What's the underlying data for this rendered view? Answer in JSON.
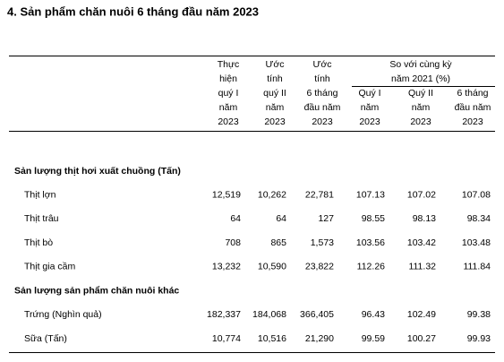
{
  "title": "4. Sản phẩm chăn nuôi 6 tháng đầu năm 2023",
  "header": {
    "columns": [
      {
        "lines": [
          "Thực",
          "hiện",
          "quý I",
          "năm",
          "2023"
        ]
      },
      {
        "lines": [
          "Ước",
          "tính",
          "quý II",
          "năm",
          "2023"
        ]
      },
      {
        "lines": [
          "Ước",
          "tính",
          "6 tháng",
          "đầu năm",
          "2023"
        ]
      },
      {
        "lines": [
          "Quý I",
          "năm",
          "2023"
        ]
      },
      {
        "lines": [
          "Quý II",
          "năm",
          "2023"
        ]
      },
      {
        "lines": [
          "6 tháng",
          "đầu năm",
          "2023"
        ]
      }
    ],
    "group": {
      "lines": [
        "So với cùng kỳ",
        "năm 2021 (%)"
      ]
    }
  },
  "sections": [
    {
      "title": "Sản lượng thịt hơi xuất chuồng (Tấn)",
      "rows": [
        {
          "label": "Thịt lợn",
          "cells": [
            "12,519",
            "10,262",
            "22,781",
            "107.13",
            "107.02",
            "107.08"
          ]
        },
        {
          "label": "Thịt trâu",
          "cells": [
            "64",
            "64",
            "127",
            "98.55",
            "98.13",
            "98.34"
          ]
        },
        {
          "label": "Thịt bò",
          "cells": [
            "708",
            "865",
            "1,573",
            "103.56",
            "103.42",
            "103.48"
          ]
        },
        {
          "label": "Thịt gia cầm",
          "cells": [
            "13,232",
            "10,590",
            "23,822",
            "112.26",
            "111.32",
            "111.84"
          ]
        }
      ]
    },
    {
      "title": "Sản lượng sản phẩm chăn nuôi khác",
      "rows": [
        {
          "label": "Trứng (Nghìn quả)",
          "cells": [
            "182,337",
            "184,068",
            "366,405",
            "96.43",
            "102.49",
            "99.38"
          ]
        },
        {
          "label": "Sữa (Tấn)",
          "cells": [
            "10,774",
            "10,516",
            "21,290",
            "99.59",
            "100.27",
            "99.93"
          ]
        }
      ]
    }
  ]
}
